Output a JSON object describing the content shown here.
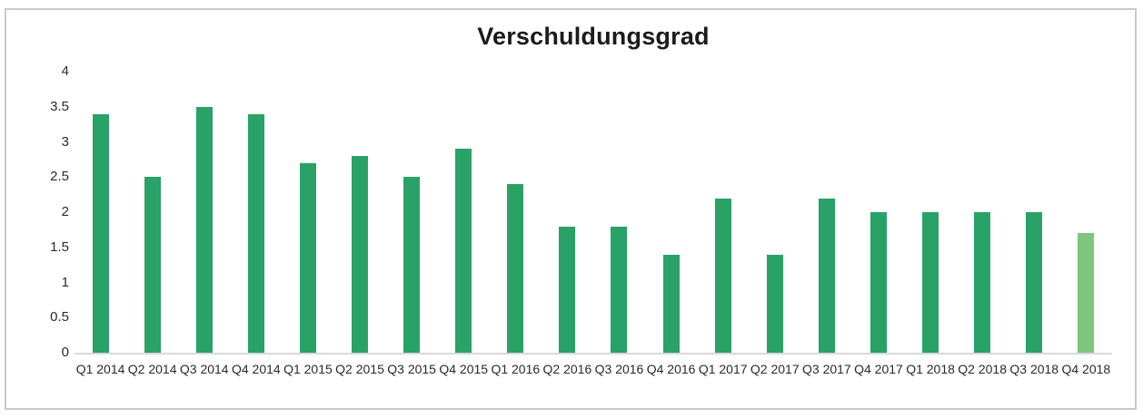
{
  "chart_data": {
    "type": "bar",
    "title": "Verschuldungsgrad",
    "xlabel": "",
    "ylabel": "",
    "categories": [
      "Q1 2014",
      "Q2 2014",
      "Q3 2014",
      "Q4 2014",
      "Q1 2015",
      "Q2 2015",
      "Q3 2015",
      "Q4 2015",
      "Q1 2016",
      "Q2 2016",
      "Q3 2016",
      "Q4 2016",
      "Q1 2017",
      "Q2 2017",
      "Q3 2017",
      "Q4 2017",
      "Q1 2018",
      "Q2 2018",
      "Q3 2018",
      "Q4 2018"
    ],
    "values": [
      3.4,
      2.5,
      3.5,
      3.4,
      2.7,
      2.8,
      2.5,
      2.9,
      2.4,
      1.8,
      1.8,
      1.4,
      2.2,
      1.4,
      2.2,
      2.0,
      2.0,
      2.0,
      2.0,
      1.7
    ],
    "highlight_index": 19,
    "ylim": [
      0,
      4
    ],
    "grid": false,
    "legend": false,
    "y_ticks": [
      {
        "label": "4",
        "value": 4
      },
      {
        "label": "3.5",
        "value": 3.5
      },
      {
        "label": "3",
        "value": 3
      },
      {
        "label": "2.5",
        "value": 2.5
      },
      {
        "label": "2",
        "value": 2
      },
      {
        "label": "1.5",
        "value": 1.5
      },
      {
        "label": "1",
        "value": 1
      },
      {
        "label": "0.5",
        "value": 0.5
      },
      {
        "label": "0",
        "value": 0
      }
    ],
    "colors": {
      "bar": "#29a268",
      "highlight": "#7ec67f",
      "axis_line": "#d9d9d9",
      "text": "#212121",
      "frame_border": "#c6cacd"
    }
  }
}
